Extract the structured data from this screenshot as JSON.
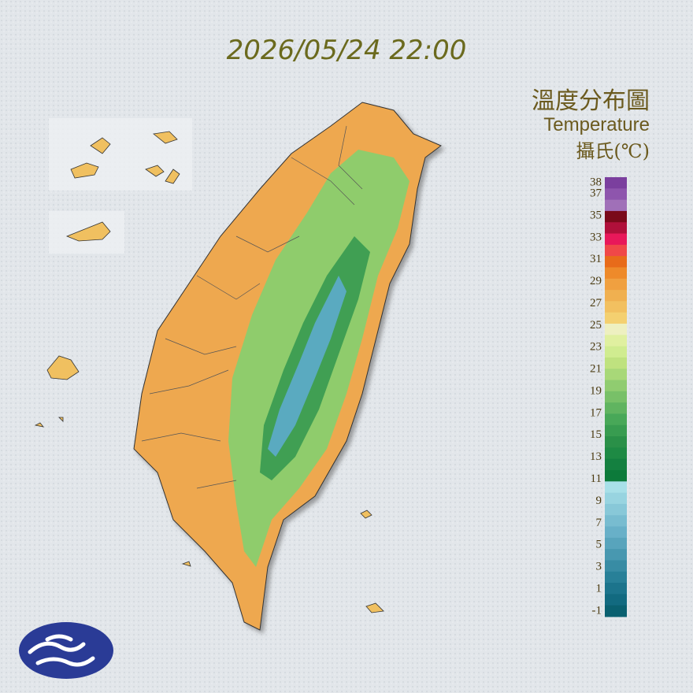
{
  "timestamp": "2026/05/24 22:00",
  "legend": {
    "title": "溫度分布圖",
    "subtitle": "Temperature",
    "unit": "攝氏(℃)",
    "labels": [
      38,
      37,
      35,
      33,
      31,
      29,
      27,
      25,
      23,
      21,
      19,
      17,
      15,
      13,
      11,
      9,
      7,
      5,
      3,
      1,
      -1
    ],
    "colors": [
      "#7b3f9e",
      "#8e55ad",
      "#a070b8",
      "#7a0a1a",
      "#b0103a",
      "#e8185a",
      "#f04848",
      "#e86b1a",
      "#ee8a2a",
      "#f0a040",
      "#f0b050",
      "#f2c060",
      "#f4d070",
      "#eef0c0",
      "#e0f0a0",
      "#d0ec90",
      "#bfe27f",
      "#a8d878",
      "#90cc70",
      "#78c068",
      "#60b460",
      "#48a858",
      "#389c50",
      "#2a9048",
      "#1e8a44",
      "#148040",
      "#0c7a3a",
      "#a8e0e8",
      "#98d4e0",
      "#88c8d8",
      "#78bcd0",
      "#68b0c8",
      "#58a4bc",
      "#4898b0",
      "#388ca4",
      "#288098",
      "#1c748c",
      "#126a80",
      "#0a6070"
    ]
  }
}
